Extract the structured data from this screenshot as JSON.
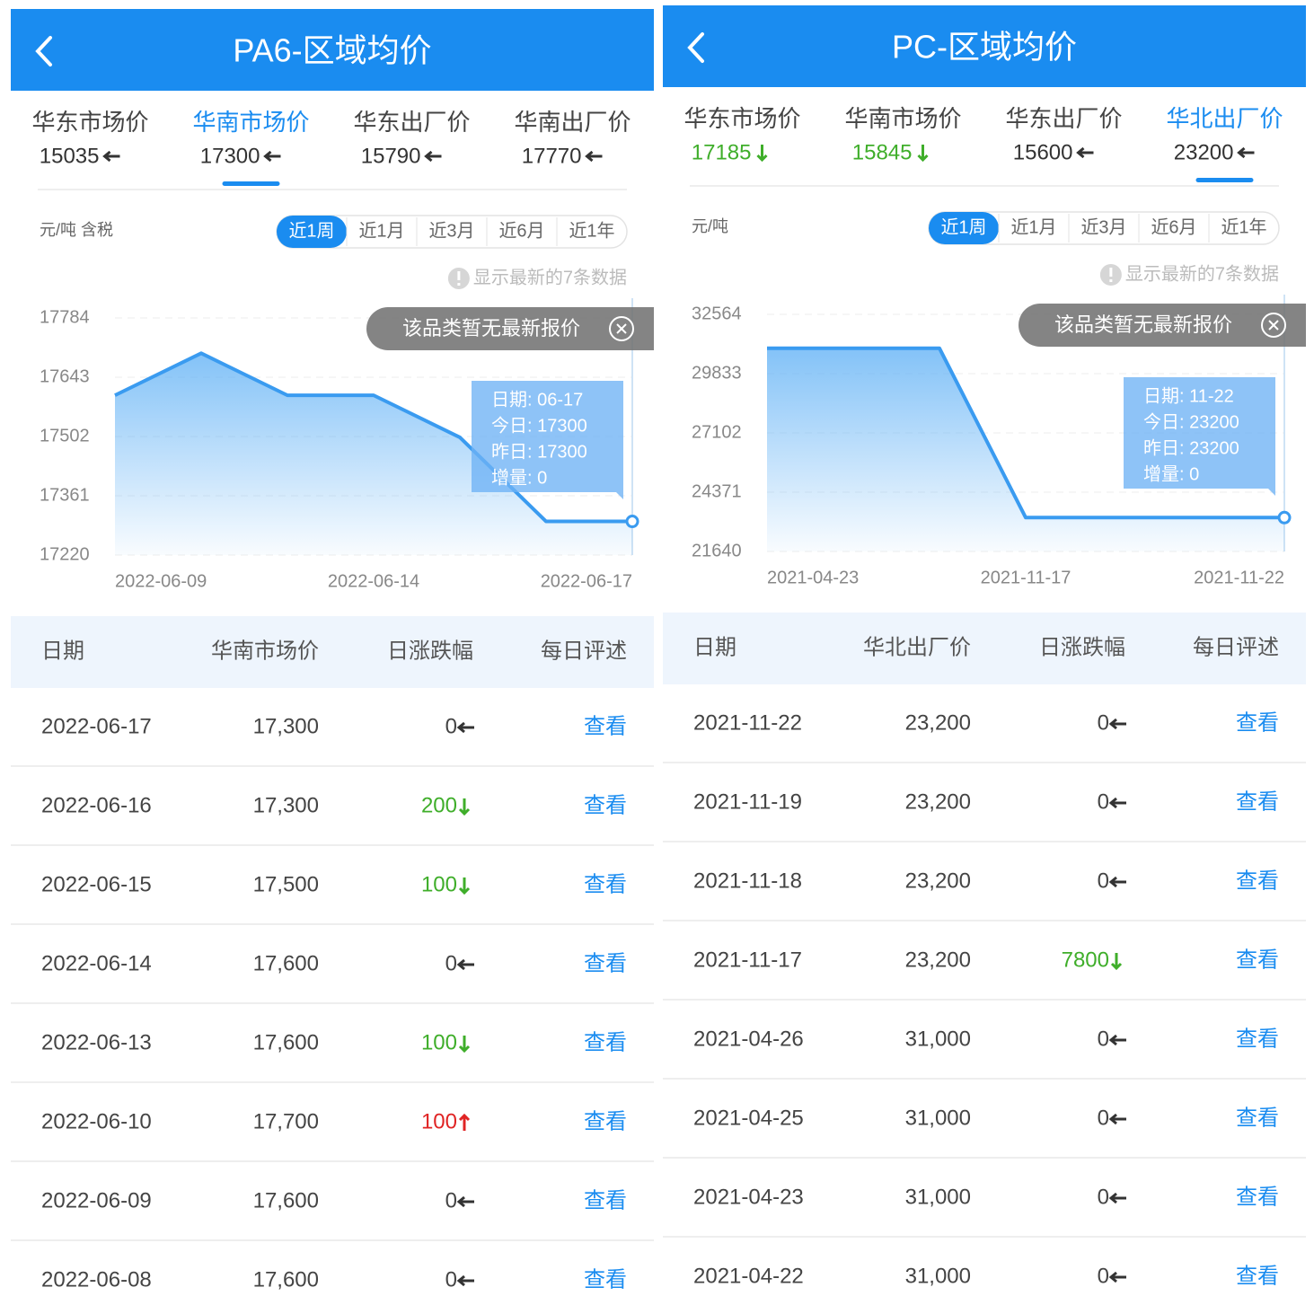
{
  "panels": [
    {
      "title": "PA6-区域均价",
      "tabs": [
        {
          "name": "华东市场价",
          "value": 15035,
          "trend": "flat"
        },
        {
          "name": "华南市场价",
          "value": 17300,
          "trend": "flat"
        },
        {
          "name": "华东出厂价",
          "value": 15790,
          "trend": "flat"
        },
        {
          "name": "华南出厂价",
          "value": 17770,
          "trend": "flat"
        }
      ],
      "active_tab": 1,
      "unit": "元/吨 含税",
      "ranges": [
        "近1周",
        "近1月",
        "近3月",
        "近6月",
        "近1年"
      ],
      "active_range": 0,
      "note": "显示最新的7条数据",
      "banner": "该品类暂无最新报价",
      "chart": {
        "type": "line",
        "categories": [
          "2022-06-09",
          null,
          null,
          "2022-06-14",
          null,
          null,
          "2022-06-17"
        ],
        "values": [
          17600,
          17700,
          17600,
          17600,
          17500,
          17300,
          17300
        ],
        "color": "#3a9bf0",
        "ylim": [
          17220,
          17784
        ],
        "yticks": [
          17220,
          17361,
          17502,
          17643,
          17784
        ],
        "grid": true
      },
      "tooltip": [
        "日期: 06-17",
        "今日: 17300",
        "昨日: 17300",
        "增量: 0"
      ],
      "table": {
        "headers": [
          "日期",
          "华南市场价",
          "日涨跌幅",
          "每日评述"
        ],
        "rows": [
          {
            "date": "2022-06-17",
            "price": "17,300",
            "change": 0,
            "trend": "flat",
            "action": "查看"
          },
          {
            "date": "2022-06-16",
            "price": "17,300",
            "change": 200,
            "trend": "down",
            "action": "查看"
          },
          {
            "date": "2022-06-15",
            "price": "17,500",
            "change": 100,
            "trend": "down",
            "action": "查看"
          },
          {
            "date": "2022-06-14",
            "price": "17,600",
            "change": 0,
            "trend": "flat",
            "action": "查看"
          },
          {
            "date": "2022-06-13",
            "price": "17,600",
            "change": 100,
            "trend": "down",
            "action": "查看"
          },
          {
            "date": "2022-06-10",
            "price": "17,700",
            "change": 100,
            "trend": "up",
            "action": "查看"
          },
          {
            "date": "2022-06-09",
            "price": "17,600",
            "change": 0,
            "trend": "flat",
            "action": "查看"
          },
          {
            "date": "2022-06-08",
            "price": "17,600",
            "change": 0,
            "trend": "flat",
            "action": "查看"
          }
        ]
      }
    },
    {
      "title": "PC-区域均价",
      "tabs": [
        {
          "name": "华东市场价",
          "value": 17185,
          "trend": "down"
        },
        {
          "name": "华南市场价",
          "value": 15845,
          "trend": "down"
        },
        {
          "name": "华东出厂价",
          "value": 15600,
          "trend": "flat"
        },
        {
          "name": "华北出厂价",
          "value": 23200,
          "trend": "flat"
        }
      ],
      "active_tab": 3,
      "unit": "元/吨",
      "ranges": [
        "近1周",
        "近1月",
        "近3月",
        "近6月",
        "近1年"
      ],
      "active_range": 0,
      "note": "显示最新的7条数据",
      "banner": "该品类暂无最新报价",
      "chart": {
        "type": "line",
        "categories": [
          "2021-04-23",
          null,
          null,
          "2021-11-17",
          null,
          null,
          "2021-11-22"
        ],
        "values": [
          31000,
          31000,
          31000,
          23200,
          23200,
          23200,
          23200
        ],
        "color": "#3a9bf0",
        "ylim": [
          21640,
          32564
        ],
        "yticks": [
          21640,
          24371,
          27102,
          29833,
          32564
        ],
        "grid": true
      },
      "tooltip": [
        "日期: 11-22",
        "今日: 23200",
        "昨日: 23200",
        "增量: 0"
      ],
      "table": {
        "headers": [
          "日期",
          "华北出厂价",
          "日涨跌幅",
          "每日评述"
        ],
        "rows": [
          {
            "date": "2021-11-22",
            "price": "23,200",
            "change": 0,
            "trend": "flat",
            "action": "查看"
          },
          {
            "date": "2021-11-19",
            "price": "23,200",
            "change": 0,
            "trend": "flat",
            "action": "查看"
          },
          {
            "date": "2021-11-18",
            "price": "23,200",
            "change": 0,
            "trend": "flat",
            "action": "查看"
          },
          {
            "date": "2021-11-17",
            "price": "23,200",
            "change": 7800,
            "trend": "down",
            "action": "查看"
          },
          {
            "date": "2021-04-26",
            "price": "31,000",
            "change": 0,
            "trend": "flat",
            "action": "查看"
          },
          {
            "date": "2021-04-25",
            "price": "31,000",
            "change": 0,
            "trend": "flat",
            "action": "查看"
          },
          {
            "date": "2021-04-23",
            "price": "31,000",
            "change": 0,
            "trend": "flat",
            "action": "查看"
          },
          {
            "date": "2021-04-22",
            "price": "31,000",
            "change": 0,
            "trend": "flat",
            "action": "查看"
          }
        ]
      }
    }
  ]
}
